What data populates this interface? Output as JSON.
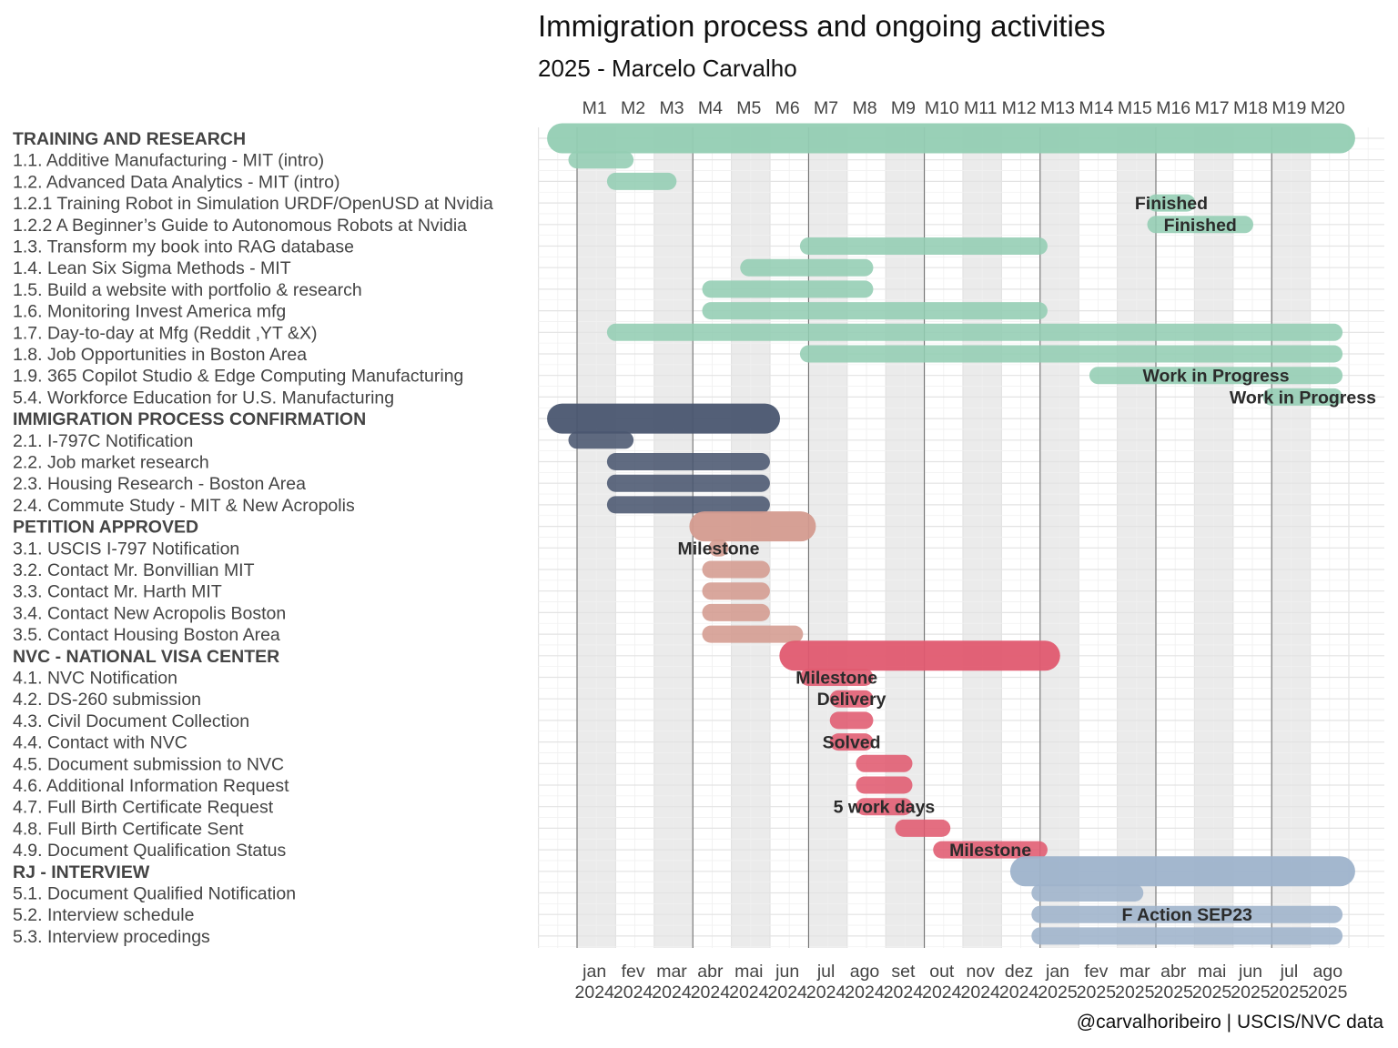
{
  "chart_data": {
    "type": "gantt",
    "title": "Immigration process and ongoing activities",
    "subtitle": "2025 - Marcelo Carvalho",
    "caption": "@carvalhoribeiro | USCIS/NVC data",
    "top_ticks": [
      "M1",
      "M2",
      "M3",
      "M4",
      "M5",
      "M6",
      "M7",
      "M8",
      "M9",
      "M10",
      "M11",
      "M12",
      "M13",
      "M14",
      "M15",
      "M16",
      "M17",
      "M18",
      "M19",
      "M20"
    ],
    "bottom_ticks": [
      {
        "month": "jan",
        "year": "2024"
      },
      {
        "month": "fev",
        "year": "2024"
      },
      {
        "month": "mar",
        "year": "2024"
      },
      {
        "month": "abr",
        "year": "2024"
      },
      {
        "month": "mai",
        "year": "2024"
      },
      {
        "month": "jun",
        "year": "2024"
      },
      {
        "month": "jul",
        "year": "2024"
      },
      {
        "month": "ago",
        "year": "2024"
      },
      {
        "month": "set",
        "year": "2024"
      },
      {
        "month": "out",
        "year": "2024"
      },
      {
        "month": "nov",
        "year": "2024"
      },
      {
        "month": "dez",
        "year": "2024"
      },
      {
        "month": "jan",
        "year": "2025"
      },
      {
        "month": "fev",
        "year": "2025"
      },
      {
        "month": "mar",
        "year": "2025"
      },
      {
        "month": "abr",
        "year": "2025"
      },
      {
        "month": "mai",
        "year": "2025"
      },
      {
        "month": "jun",
        "year": "2025"
      },
      {
        "month": "jul",
        "year": "2025"
      },
      {
        "month": "ago",
        "year": "2025"
      }
    ],
    "groups": [
      {
        "name": "TRAINING AND RESEARCH",
        "color": "#93cdb3"
      },
      {
        "name": "IMMIGRATION PROCESS CONFIRMATION",
        "color": "#4a5670"
      },
      {
        "name": "PETITION APPROVED",
        "color": "#d49b8f"
      },
      {
        "name": "NVC - NATIONAL VISA CENTER",
        "color": "#e05a70"
      },
      {
        "name": "RJ - INTERVIEW",
        "color": "#9eb3cb"
      }
    ],
    "tasks": [
      {
        "label": "TRAINING AND RESEARCH",
        "group": 0,
        "summary": true,
        "start": "2023-12-20",
        "end": "2025-08-25",
        "note": ""
      },
      {
        "label": "1.1. Additive Manufacturing - MIT (intro)",
        "group": 0,
        "start": "2024-01-01",
        "end": "2024-02-08",
        "note": ""
      },
      {
        "label": "1.2. Advanced Data Analytics - MIT (intro)",
        "group": 0,
        "start": "2024-02-01",
        "end": "2024-03-12",
        "note": ""
      },
      {
        "label": "1.2.1 Training Robot in Simulation URDF/OpenUSD at Nvidia",
        "group": 0,
        "start": "2025-04-01",
        "end": "2025-04-25",
        "note": "Finished"
      },
      {
        "label": "1.2.2 A Beginner’s Guide to Autonomous Robots at Nvidia",
        "group": 0,
        "start": "2025-04-01",
        "end": "2025-06-10",
        "note": "Finished"
      },
      {
        "label": "1.3. Transform my book into RAG database",
        "group": 0,
        "start": "2024-07-01",
        "end": "2024-12-31",
        "note": ""
      },
      {
        "label": "1.4. Lean Six Sigma Methods - MIT",
        "group": 0,
        "start": "2024-05-15",
        "end": "2024-08-15",
        "note": ""
      },
      {
        "label": "1.5. Build a website with portfolio & research",
        "group": 0,
        "start": "2024-04-15",
        "end": "2024-08-15",
        "note": ""
      },
      {
        "label": "1.6. Monitoring Invest America mfg",
        "group": 0,
        "start": "2024-04-15",
        "end": "2024-12-31",
        "note": ""
      },
      {
        "label": "1.7. Day-to-day at Mfg (Reddit ,YT &X)",
        "group": 0,
        "start": "2024-02-01",
        "end": "2025-08-20",
        "note": ""
      },
      {
        "label": "1.8. Job Opportunities in Boston Area",
        "group": 0,
        "start": "2024-07-01",
        "end": "2025-08-20",
        "note": ""
      },
      {
        "label": "1.9. 365 Copilot Studio & Edge Computing Manufacturing",
        "group": 0,
        "start": "2025-02-15",
        "end": "2025-08-20",
        "note": "Work in Progress"
      },
      {
        "label": "5.4. Workforce Education for U.S. Manufacturing",
        "group": 0,
        "start": "2025-07-01",
        "end": "2025-08-20",
        "note": "Work in Progress"
      },
      {
        "label": "IMMIGRATION PROCESS CONFIRMATION",
        "group": 1,
        "summary": true,
        "start": "2023-12-20",
        "end": "2024-05-28",
        "note": ""
      },
      {
        "label": "2.1. I-797C Notification",
        "group": 1,
        "start": "2024-01-01",
        "end": "2024-02-08",
        "note": ""
      },
      {
        "label": "2.2. Job market research",
        "group": 1,
        "start": "2024-02-01",
        "end": "2024-05-25",
        "note": ""
      },
      {
        "label": "2.3. Housing Research - Boston Area",
        "group": 1,
        "start": "2024-02-01",
        "end": "2024-05-25",
        "note": ""
      },
      {
        "label": "2.4. Commute Study - MIT & New Acropolis",
        "group": 1,
        "start": "2024-02-01",
        "end": "2024-05-25",
        "note": ""
      },
      {
        "label": "PETITION APPROVED",
        "group": 2,
        "summary": true,
        "start": "2024-04-10",
        "end": "2024-06-25",
        "note": ""
      },
      {
        "label": "3.1. USCIS I-797 Notification",
        "group": 2,
        "start": "2024-04-20",
        "end": "2024-04-22",
        "note": "Milestone"
      },
      {
        "label": "3.2. Contact Mr. Bonvillian MIT",
        "group": 2,
        "start": "2024-04-15",
        "end": "2024-05-25",
        "note": ""
      },
      {
        "label": "3.3. Contact Mr. Harth MIT",
        "group": 2,
        "start": "2024-04-15",
        "end": "2024-05-25",
        "note": ""
      },
      {
        "label": "3.4. Contact New Acropolis Boston",
        "group": 2,
        "start": "2024-04-15",
        "end": "2024-05-25",
        "note": ""
      },
      {
        "label": "3.5. Contact Housing Boston Area",
        "group": 2,
        "start": "2024-04-15",
        "end": "2024-06-20",
        "note": ""
      },
      {
        "label": "NVC - NATIONAL VISA CENTER",
        "group": 3,
        "summary": true,
        "start": "2024-06-20",
        "end": "2025-01-05",
        "note": ""
      },
      {
        "label": "4.1. NVC Notification",
        "group": 3,
        "start": "2024-07-01",
        "end": "2024-08-15",
        "note": "Milestone"
      },
      {
        "label": "4.2. DS-260 submission",
        "group": 3,
        "start": "2024-07-25",
        "end": "2024-08-15",
        "note": "Delivery"
      },
      {
        "label": "4.3. Civil Document Collection",
        "group": 3,
        "start": "2024-07-25",
        "end": "2024-08-15",
        "note": ""
      },
      {
        "label": "4.4. Contact with NVC",
        "group": 3,
        "start": "2024-07-25",
        "end": "2024-08-15",
        "note": "Solved"
      },
      {
        "label": "4.5. Document submission to NVC",
        "group": 3,
        "start": "2024-08-15",
        "end": "2024-09-15",
        "note": ""
      },
      {
        "label": "4.6. Additional Information Request",
        "group": 3,
        "start": "2024-08-15",
        "end": "2024-09-15",
        "note": ""
      },
      {
        "label": "4.7. Full Birth Certificate Request",
        "group": 3,
        "start": "2024-08-15",
        "end": "2024-09-15",
        "note": "5 work days"
      },
      {
        "label": "4.8. Full Birth Certificate Sent",
        "group": 3,
        "start": "2024-09-15",
        "end": "2024-10-15",
        "note": ""
      },
      {
        "label": "4.9. Document Qualification Status",
        "group": 3,
        "start": "2024-10-15",
        "end": "2024-12-31",
        "note": "Milestone"
      },
      {
        "label": "RJ - INTERVIEW",
        "group": 4,
        "summary": true,
        "start": "2024-12-20",
        "end": "2025-08-25",
        "note": ""
      },
      {
        "label": "5.1. Document Qualified Notification",
        "group": 4,
        "start": "2025-01-01",
        "end": "2025-03-15",
        "note": ""
      },
      {
        "label": "5.2. Interview schedule",
        "group": 4,
        "start": "2025-01-01",
        "end": "2025-08-20",
        "note": "F Action SEP23"
      },
      {
        "label": "5.3. Interview procedings",
        "group": 4,
        "start": "2025-01-01",
        "end": "2025-08-20",
        "note": ""
      }
    ],
    "shaded_months": [
      "2024-01",
      "2024-03",
      "2024-05",
      "2024-07",
      "2024-09",
      "2024-11",
      "2025-01",
      "2025-03",
      "2025-05",
      "2025-07"
    ],
    "dark_gridlines": [
      "2024-01-01",
      "2024-04-01",
      "2024-07-01",
      "2024-10-01",
      "2025-01-01",
      "2025-04-01",
      "2025-07-01"
    ],
    "grid": true
  }
}
